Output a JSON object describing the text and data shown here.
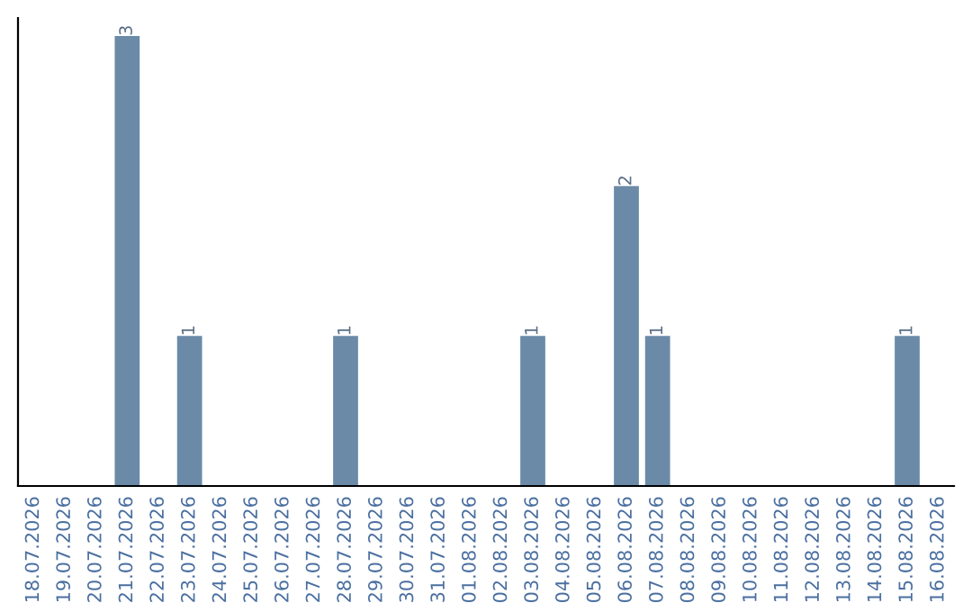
{
  "chart_data": {
    "type": "bar",
    "categories": [
      "18.07.2026",
      "19.07.2026",
      "20.07.2026",
      "21.07.2026",
      "22.07.2026",
      "23.07.2026",
      "24.07.2026",
      "25.07.2026",
      "26.07.2026",
      "27.07.2026",
      "28.07.2026",
      "29.07.2026",
      "30.07.2026",
      "31.07.2026",
      "01.08.2026",
      "02.08.2026",
      "03.08.2026",
      "04.08.2026",
      "05.08.2026",
      "06.08.2026",
      "07.08.2026",
      "08.08.2026",
      "09.08.2026",
      "10.08.2026",
      "11.08.2026",
      "12.08.2026",
      "13.08.2026",
      "14.08.2026",
      "15.08.2026",
      "16.08.2026"
    ],
    "values": [
      0,
      0,
      0,
      3,
      0,
      1,
      0,
      0,
      0,
      0,
      1,
      0,
      0,
      0,
      0,
      0,
      1,
      0,
      0,
      2,
      1,
      0,
      0,
      0,
      0,
      0,
      0,
      0,
      1,
      0
    ],
    "value_labels": [
      null,
      null,
      null,
      "3",
      null,
      "1",
      null,
      null,
      null,
      null,
      "1",
      null,
      null,
      null,
      null,
      null,
      "1",
      null,
      null,
      "2",
      "1",
      null,
      null,
      null,
      null,
      null,
      null,
      null,
      "1",
      null
    ],
    "color": "#6a8aa8",
    "grid": false,
    "legend": false,
    "tick_labels": "x"
  }
}
